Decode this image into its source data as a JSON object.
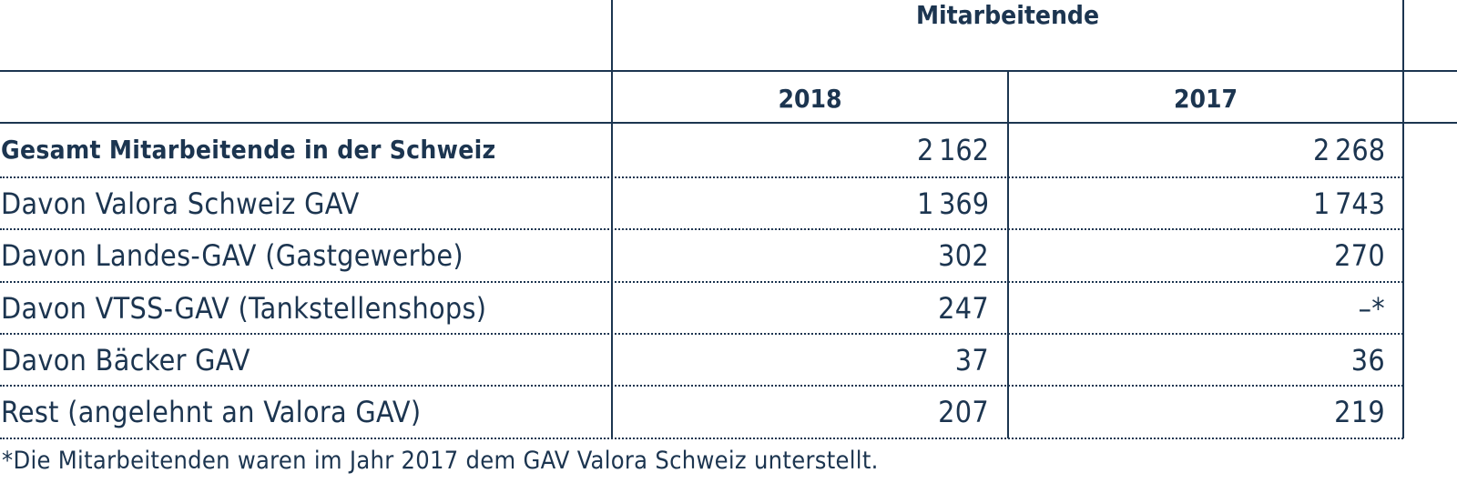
{
  "header": {
    "group": "Mitarbeitende",
    "years": [
      "2018",
      "2017"
    ]
  },
  "table": {
    "rows": [
      [
        "Gesamt Mitarbeitende in der Schweiz",
        "2 162",
        "2 268"
      ],
      [
        "Davon Valora Schweiz GAV",
        "1 369",
        "1 743"
      ],
      [
        "Davon Landes-GAV (Gastgewerbe)",
        "302",
        "270"
      ],
      [
        "Davon VTSS-GAV (Tankstellenshops)",
        "247",
        "–*"
      ],
      [
        "Davon Bäcker GAV",
        "37",
        "36"
      ],
      [
        "Rest (angelehnt an Valora GAV)",
        "207",
        "219"
      ]
    ]
  },
  "footnote": "*Die Mitarbeitenden waren im Jahr 2017 dem GAV Valora Schweiz unterstellt."
}
